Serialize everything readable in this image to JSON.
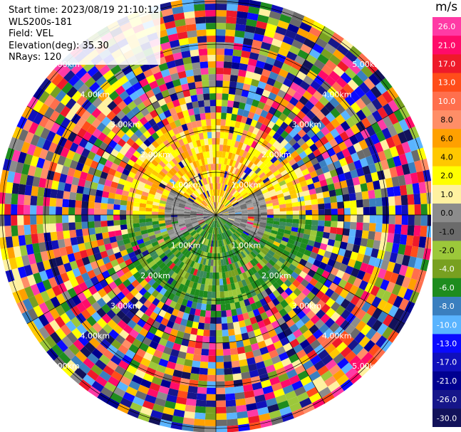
{
  "header": {
    "start_time": "Start time: 2023/08/19 21:10:12",
    "instrument": "WLS200s-181",
    "field": "Field: VEL",
    "elevation": "Elevation(deg): 35.30",
    "nrays": "NRays: 120"
  },
  "colorbar": {
    "unit": "m/s",
    "ticks": [
      "26.0",
      "21.0",
      "17.0",
      "13.0",
      "10.0",
      "8.0",
      "6.0",
      "4.0",
      "2.0",
      "1.0",
      "0.0",
      "-1.0",
      "-2.0",
      "-4.0",
      "-6.0",
      "-8.0",
      "-10.0",
      "-13.0",
      "-17.0",
      "-21.0",
      "-26.0",
      "-30.0"
    ],
    "colors": [
      "#ff3aa5",
      "#ff0b6a",
      "#ee1a2a",
      "#ff4d1a",
      "#ff6f4d",
      "#ff8e67",
      "#ffa000",
      "#ffc800",
      "#ffff00",
      "#fff1a0",
      "#8c8c8c",
      "#6b6b6b",
      "#9cc83a",
      "#78a020",
      "#1e8c1e",
      "#3a7fbf",
      "#5ab4ff",
      "#0a0aff",
      "#1010bb",
      "#000090",
      "#16168a",
      "#12125a"
    ]
  },
  "chart_data": {
    "type": "heatmap",
    "subtype": "polar-ppi",
    "rays": 120,
    "range_rings": [
      "1.00km",
      "2.00km",
      "3.00km",
      "4.00km",
      "5.00km"
    ],
    "spokes_deg": [
      0,
      30,
      60,
      90,
      120,
      150,
      180,
      210,
      240,
      270,
      300,
      330
    ],
    "near_field": [
      {
        "sector": "north",
        "colors": "yellow-orange-salmon",
        "range_km": [
          0,
          2.3
        ]
      },
      {
        "sector": "south",
        "colors": "green",
        "range_km": [
          0,
          2.3
        ]
      },
      {
        "sector": "east-west",
        "colors": "gray",
        "range_km": [
          0,
          1.2
        ]
      }
    ],
    "far_field": "noisy, random colors",
    "colorbar_unit": "m/s"
  }
}
